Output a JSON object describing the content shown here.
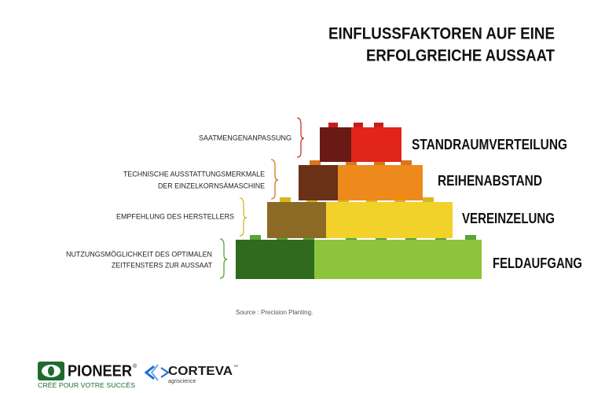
{
  "title": [
    "EINFLUSSFAKTOREN AUF EINE",
    "ERFOLGREICHE AUSSAAT"
  ],
  "levels": [
    {
      "label": "STANDRAUMVERTEILUNG",
      "description": [
        "SAATMENGENANPASSUNG"
      ]
    },
    {
      "label": "REIHENABSTAND",
      "description": [
        "TECHNISCHE AUSSTATTUNGSMERKMALE",
        "DER EINZELKORNSÄMASCHINE"
      ]
    },
    {
      "label": "VEREINZELUNG",
      "description": [
        "EMPFEHLUNG DES HERSTELLERS"
      ]
    },
    {
      "label": "FELDAUFGANG",
      "description": [
        "NUTZUNGSMÖGLICHKEIT DES OPTIMALEN",
        "ZEITFENSTERS ZUR AUSSAAT"
      ]
    }
  ],
  "source": "Source : Precision Planting.",
  "logos": {
    "pioneer": "PIONEER",
    "pioneer_mark": "®",
    "pioneer_tagline": "CRÉÉ POUR VOTRE SUCCÈS",
    "corteva": "CORTEVA",
    "corteva_mark": "™",
    "corteva_sub": "agriscience"
  }
}
